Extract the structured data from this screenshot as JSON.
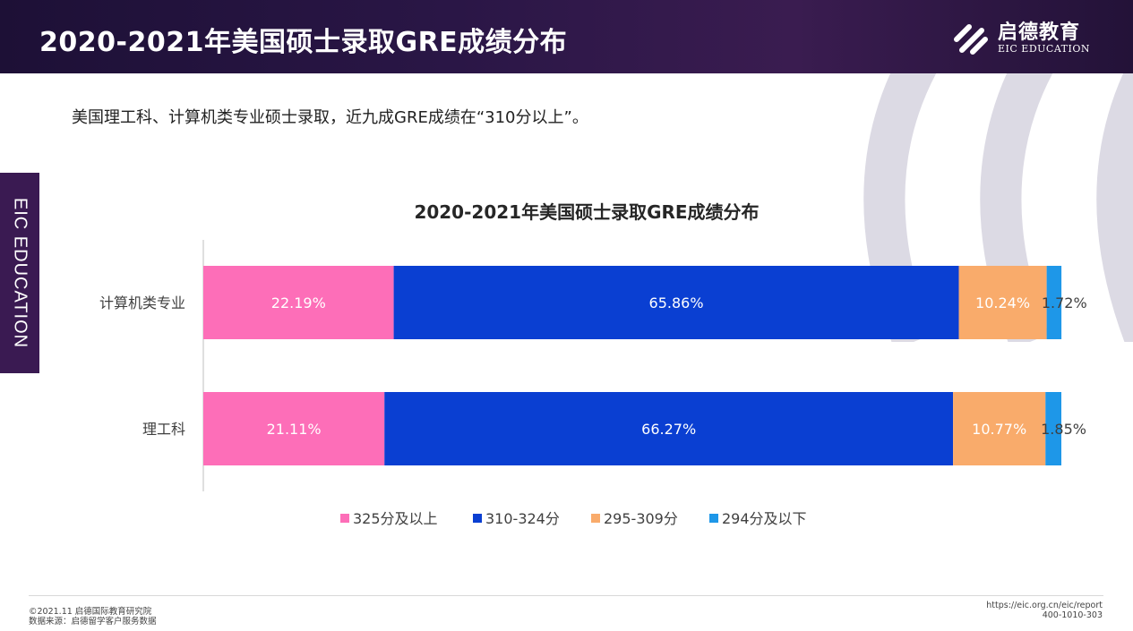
{
  "header": {
    "title": "2020-2021年美国硕士录取GRE成绩分布"
  },
  "logo": {
    "name_cn": "启德教育",
    "name_en": "EIC EDUCATION"
  },
  "side_tab": {
    "label": "EIC EDUCATION"
  },
  "subtitle": "美国理工科、计算机类专业硕士录取，近九成GRE成绩在“310分以上”。",
  "chart_data": {
    "type": "bar",
    "orientation": "horizontal",
    "stacked": true,
    "percent": true,
    "title": "2020-2021年美国硕士录取GRE成绩分布",
    "categories": [
      "计算机类专业",
      "理工科"
    ],
    "series": [
      {
        "name": "325分及以上",
        "values": [
          22.19,
          21.11
        ],
        "color": "#fd6eb8"
      },
      {
        "name": "310-324分",
        "values": [
          65.86,
          66.27
        ],
        "color": "#0a3fd2"
      },
      {
        "name": "295-309分",
        "values": [
          10.24,
          10.77
        ],
        "color": "#f9ab6b"
      },
      {
        "name": "294分及以下",
        "values": [
          1.72,
          1.85
        ],
        "color": "#1e97e8"
      }
    ],
    "xlim": [
      0,
      100
    ],
    "grid": false,
    "legend_position": "bottom"
  },
  "footer": {
    "date_line": "©2021.11 启德国际教育研究院",
    "source_line": "数据来源：启德留学客户服务数据",
    "url": "https://eic.org.cn/eic/report",
    "phone": "400-1010-303"
  },
  "colors": {
    "header_bg": "#2a1646",
    "side_tab": "#3a1a52",
    "deco": "#dcdae4"
  }
}
